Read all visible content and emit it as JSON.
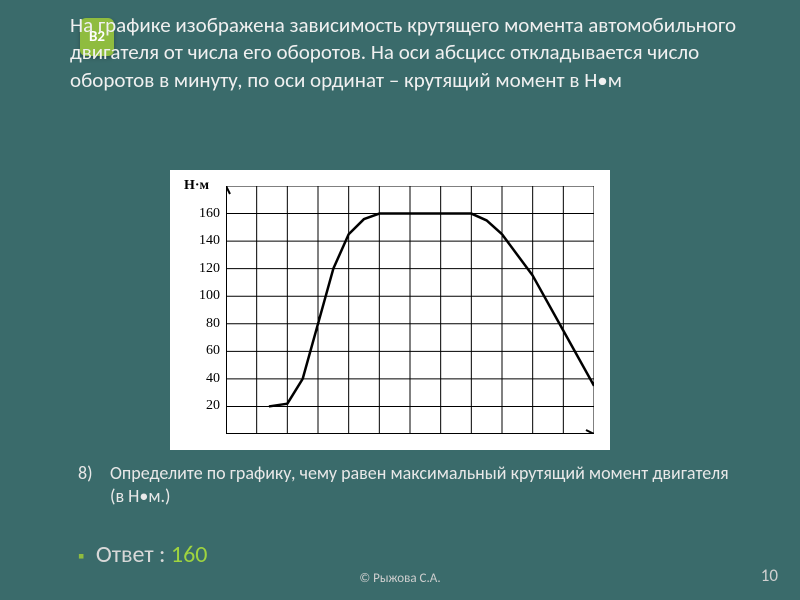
{
  "badge": {
    "label": "В2",
    "bg": "#8fbc3f"
  },
  "problem_text": "   На графике изображена зависимость крутящего момента автомобильного двигателя от числа его оборотов. На оси абсцисс откладывается число оборотов в минуту, по  оси ординат – крутящий момент в Н•м",
  "chart": {
    "type": "line",
    "y_unit_label": "Н·м",
    "background_color": "#ffffff",
    "grid_color": "#000000",
    "axis_color": "#000000",
    "line_color": "#000000",
    "line_width": 2.5,
    "x_range": [
      0,
      6000
    ],
    "y_range": [
      0,
      180
    ],
    "x_ticks": [
      0,
      500,
      1000,
      1500,
      2000,
      2500,
      3000,
      3500,
      4000,
      4500,
      5000,
      5500,
      6000
    ],
    "y_ticks": [
      20,
      40,
      60,
      80,
      100,
      120,
      140,
      160
    ],
    "y_tick_labels": [
      "20",
      "40",
      "60",
      "80",
      "100",
      "120",
      "140",
      "160"
    ],
    "points": [
      [
        700,
        20
      ],
      [
        1000,
        22
      ],
      [
        1250,
        40
      ],
      [
        1500,
        80
      ],
      [
        1750,
        120
      ],
      [
        2000,
        145
      ],
      [
        2250,
        156
      ],
      [
        2500,
        160
      ],
      [
        3000,
        160
      ],
      [
        3500,
        160
      ],
      [
        4000,
        160
      ],
      [
        4250,
        155
      ],
      [
        4500,
        145
      ],
      [
        5000,
        115
      ],
      [
        5500,
        75
      ],
      [
        6000,
        35
      ]
    ],
    "tick_label_fontsize": 14
  },
  "question": {
    "number": "8)",
    "text": " Определите по графику, чему равен максимальный крутящий момент двигателя (в Н•м.)"
  },
  "answer": {
    "label": "Ответ : ",
    "value": "160",
    "value_color": "#9fd43f"
  },
  "copyright": "© Рыжова С.А.",
  "page_number": "10"
}
